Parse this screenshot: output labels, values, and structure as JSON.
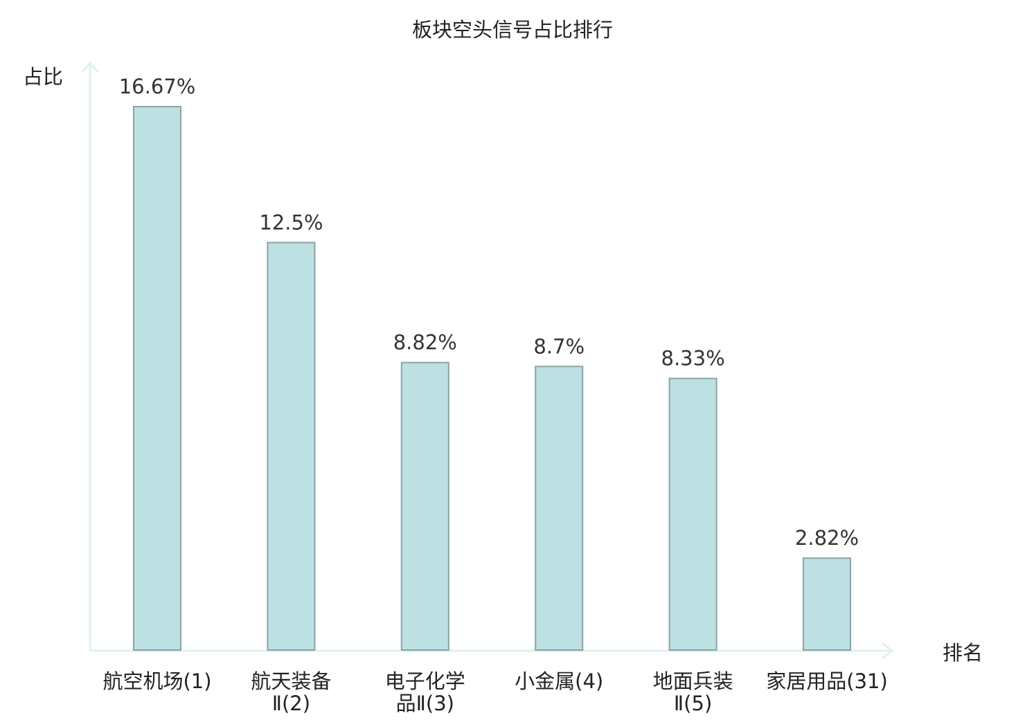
{
  "chart_data": {
    "type": "bar",
    "title": "板块空头信号占比排行",
    "ylabel": "占比",
    "xlabel": "排名",
    "categories": [
      {
        "name": "航空机场",
        "rank": "(1)",
        "line1": "航空机场(1)",
        "line2": ""
      },
      {
        "name": "航天装备Ⅱ",
        "rank": "(2)",
        "line1": "航天装备",
        "line2": "Ⅱ(2)"
      },
      {
        "name": "电子化学品Ⅱ",
        "rank": "(3)",
        "line1": "电子化学",
        "line2": "品Ⅱ(3)"
      },
      {
        "name": "小金属",
        "rank": "(4)",
        "line1": "小金属(4)",
        "line2": ""
      },
      {
        "name": "地面兵装Ⅱ",
        "rank": "(5)",
        "line1": "地面兵装",
        "line2": "Ⅱ(5)"
      },
      {
        "name": "家居用品",
        "rank": "(31)",
        "line1": "家居用品(31)",
        "line2": ""
      }
    ],
    "values": [
      16.67,
      12.5,
      8.82,
      8.7,
      8.33,
      2.82
    ],
    "value_labels": [
      "16.67%",
      "12.5%",
      "8.82%",
      "8.7%",
      "8.33%",
      "2.82%"
    ],
    "highlight_index": 5,
    "ylim": [
      0,
      16.67
    ],
    "grid": false,
    "legend": "none",
    "colors": {
      "bar_fill": "#bde0e3",
      "bar_stroke": "#88a3a6",
      "axis": "#dff1ef",
      "highlight_text": "#e31a1c",
      "text": "#222222"
    }
  }
}
